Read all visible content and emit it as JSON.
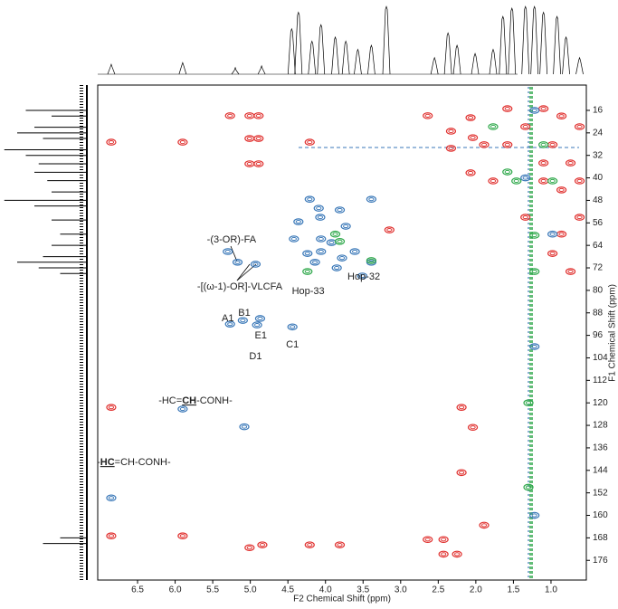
{
  "chart_data": {
    "type": "scatter",
    "x_label": "F2 Chemical Shift (ppm)",
    "y_label": "F1 Chemical Shift (ppm)",
    "xlim": [
      7.03,
      0.53
    ],
    "ylim": [
      7,
      183
    ],
    "xticks": [
      6.5,
      {
        "value": 6,
        "label": "6.0"
      },
      5.5,
      {
        "value": 5,
        "label": "5.0"
      },
      4.5,
      {
        "value": 4,
        "label": "4.0"
      },
      3.5,
      {
        "value": 3,
        "label": "3.0"
      },
      2.5,
      {
        "value": 2,
        "label": "2.0"
      },
      1.5,
      {
        "value": 1,
        "label": "1.0"
      }
    ],
    "yticks": [
      16,
      24,
      32,
      40,
      48,
      56,
      64,
      72,
      80,
      88,
      96,
      104,
      112,
      120,
      128,
      136,
      144,
      152,
      160,
      168,
      176
    ],
    "series": [
      {
        "color": "#e0302e",
        "x": [
          6.85,
          6.85,
          6.85,
          5.9,
          5.9,
          5.27,
          5.01,
          4.89,
          5.01,
          4.89,
          5.01,
          4.89,
          5.01,
          4.84,
          4.21,
          4.21,
          3.81,
          3.15,
          2.64,
          2.64,
          2.43,
          2.33,
          2.07,
          2.04,
          2.07,
          2.25,
          1.89,
          1.89,
          2.19,
          2.04,
          2.19,
          2.43,
          2.33,
          1.58,
          1.34,
          1.1,
          0.86,
          0.62,
          0.98,
          0.74,
          0.86,
          0.62,
          1.1,
          1.34,
          0.98,
          0.74,
          0.86,
          1.1,
          0.62,
          1.77,
          1.58
        ],
        "y": [
          27.3,
          121.6,
          167.3,
          27.3,
          167.3,
          17.9,
          17.9,
          17.9,
          26,
          26,
          35,
          35,
          171.5,
          170.5,
          27.3,
          170.5,
          170.5,
          58.5,
          17.9,
          168.6,
          168.6,
          23.4,
          18.6,
          25.7,
          38.2,
          173.8,
          163.5,
          28.2,
          121.6,
          128.7,
          144.8,
          173.8,
          29.5,
          15.4,
          21.8,
          15.4,
          18,
          21.8,
          28.2,
          34.7,
          44.3,
          54,
          41.1,
          54,
          66.9,
          73.3,
          60,
          34.7,
          41.1,
          41.1,
          28.2
        ]
      },
      {
        "color": "#3a78b8",
        "x": [
          5.3,
          5.17,
          4.93,
          5.27,
          5.1,
          4.87,
          4.91,
          4.44,
          5.9,
          6.85,
          4.36,
          4.09,
          4.07,
          3.81,
          3.73,
          4.24,
          4.14,
          4.06,
          3.92,
          3.78,
          3.61,
          3.85,
          3.51,
          3.39,
          4.42,
          4.06,
          4.21,
          3.39,
          5.08,
          1.22,
          1.22,
          1.22,
          1.34,
          0.98
        ],
        "y": [
          66.2,
          70,
          70.7,
          92,
          90.7,
          90,
          92.3,
          93,
          122.2,
          153.8,
          55.6,
          50.8,
          54,
          51.4,
          57.2,
          66.9,
          70,
          66.2,
          63,
          68.5,
          66.2,
          72,
          74.9,
          70,
          61.7,
          61.7,
          47.6,
          47.6,
          128.5,
          16,
          100,
          160,
          40,
          60
        ]
      },
      {
        "color": "#2ea84a",
        "x": [
          3.87,
          3.81,
          3.39,
          1.77,
          1.58,
          1.46,
          1.1,
          0.98,
          1.22,
          1.22,
          4.24,
          1.3,
          1.3
        ],
        "y": [
          60,
          62.6,
          69.4,
          21.8,
          37.9,
          41.1,
          28.2,
          41.1,
          60.4,
          73.3,
          73.3,
          120,
          150
        ]
      }
    ],
    "annotations": [
      {
        "parts": [
          "-(3-OR)-FA"
        ],
        "x": 5.25,
        "y": 62
      },
      {
        "parts": [
          "-[(ω-1)-OR]-VLCFA"
        ],
        "x": 5.14,
        "y": 78.8
      },
      {
        "parts": [
          "Hop-33"
        ],
        "x": 4.23,
        "y": 80.4
      },
      {
        "parts": [
          "Hop-32"
        ],
        "x": 3.49,
        "y": 75.2
      },
      {
        "parts": [
          "A1"
        ],
        "x": 5.3,
        "y": 90
      },
      {
        "parts": [
          "B1"
        ],
        "x": 5.08,
        "y": 88.1
      },
      {
        "parts": [
          "E1"
        ],
        "x": 4.86,
        "y": 96.2
      },
      {
        "parts": [
          "D1"
        ],
        "x": 4.93,
        "y": 103.6
      },
      {
        "parts": [
          "C1"
        ],
        "x": 4.44,
        "y": 99.4
      },
      {
        "parts": [
          "-HC=",
          "CH",
          "-CONH-"
        ],
        "emphasis": 1,
        "x": 5.73,
        "y": 119.3
      },
      {
        "parts": [
          "-",
          "HC",
          "=CH-CONH-"
        ],
        "emphasis": 1,
        "x": 6.55,
        "y": 141.2
      }
    ],
    "projection_f2": {
      "x": [
        6.85,
        5.9,
        5.2,
        4.85,
        4.45,
        4.36,
        4.18,
        4.06,
        3.87,
        3.73,
        3.57,
        3.39,
        3.19,
        2.55,
        2.37,
        2.25,
        2.01,
        1.77,
        1.64,
        1.52,
        1.34,
        1.22,
        1.1,
        0.92,
        0.8,
        0.62
      ],
      "values": [
        12,
        14,
        8,
        10,
        55,
        75,
        40,
        60,
        45,
        40,
        30,
        35,
        82,
        20,
        50,
        35,
        25,
        30,
        70,
        80,
        82,
        82,
        75,
        70,
        45,
        20
      ],
      "ylim": [
        0,
        90
      ]
    },
    "projection_f1": {
      "y": [
        16,
        18,
        22,
        24,
        26,
        30,
        32,
        35,
        38,
        41,
        45,
        48,
        50,
        55,
        60,
        64,
        68,
        70,
        72,
        74,
        168,
        170
      ],
      "values": [
        70,
        40,
        60,
        80,
        50,
        95,
        70,
        55,
        60,
        45,
        40,
        95,
        60,
        40,
        30,
        40,
        50,
        80,
        55,
        30,
        30,
        50
      ],
      "xlim": [
        0,
        100
      ]
    }
  }
}
